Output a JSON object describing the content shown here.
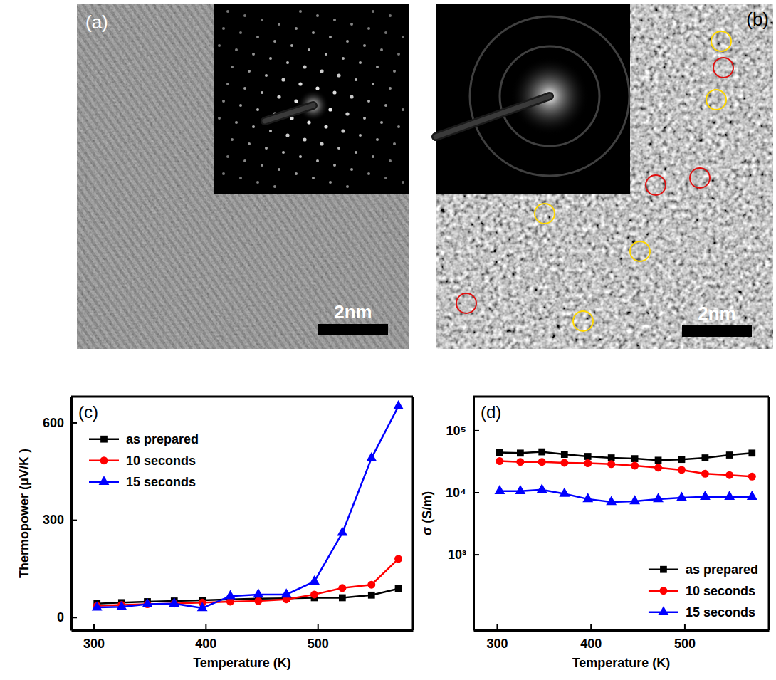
{
  "images": [
    {
      "label": "(a)",
      "scale_bar": "2nm"
    },
    {
      "label": "(b)",
      "scale_bar": "2nm"
    }
  ],
  "chart_data": [
    {
      "type": "line",
      "title": "(c)",
      "x_label": "Temperature (K)",
      "y_label": "Thermopower (μV/K )",
      "x": [
        303,
        325,
        348,
        372,
        397,
        422,
        447,
        472,
        497,
        522,
        548,
        572
      ],
      "series": [
        {
          "name": "as prepared",
          "color": "#000000",
          "marker": "square",
          "values": [
            42,
            45,
            48,
            50,
            52,
            55,
            57,
            58,
            60,
            60,
            68,
            88
          ]
        },
        {
          "name": "10 seconds",
          "color": "#ff0000",
          "marker": "circle",
          "values": [
            35,
            38,
            40,
            42,
            45,
            48,
            50,
            55,
            70,
            90,
            100,
            180
          ]
        },
        {
          "name": "15 seconds",
          "color": "#0000ff",
          "marker": "triangle",
          "values": [
            30,
            32,
            40,
            42,
            28,
            65,
            70,
            70,
            110,
            260,
            490,
            650
          ]
        }
      ],
      "xlim": [
        280,
        585
      ],
      "ylim": [
        -40,
        680
      ],
      "xticks": [
        300,
        400,
        500
      ],
      "yticks": [
        0,
        300,
        600
      ],
      "legend": "upper left"
    },
    {
      "type": "line",
      "title": "(d)",
      "x_label": "Temperature (K)",
      "y_label": "σ (S/m)",
      "x": [
        303,
        325,
        348,
        372,
        397,
        422,
        447,
        472,
        497,
        522,
        548,
        572
      ],
      "series": [
        {
          "name": "as prepared",
          "color": "#000000",
          "marker": "square",
          "values": [
            44000,
            43000,
            45000,
            41000,
            38000,
            36000,
            35000,
            33000,
            34000,
            36000,
            40000,
            43000
          ]
        },
        {
          "name": "10 seconds",
          "color": "#ff0000",
          "marker": "circle",
          "values": [
            32000,
            31000,
            31000,
            30000,
            29500,
            28500,
            27000,
            25000,
            23000,
            20000,
            19000,
            18000
          ]
        },
        {
          "name": "15 seconds",
          "color": "#0000ff",
          "marker": "triangle",
          "values": [
            10500,
            10500,
            11000,
            9500,
            7800,
            7000,
            7200,
            7800,
            8200,
            8500,
            8500,
            8500
          ]
        }
      ],
      "xlim": [
        275,
        590
      ],
      "ylim": [
        60,
        350000
      ],
      "xticks": [
        300,
        400,
        500
      ],
      "yticks": [
        {
          "value": 1000,
          "label": "10³"
        },
        {
          "value": 10000,
          "label": "10⁴"
        },
        {
          "value": 100000,
          "label": "10⁵"
        }
      ],
      "log": "y",
      "legend": "lower right"
    }
  ]
}
